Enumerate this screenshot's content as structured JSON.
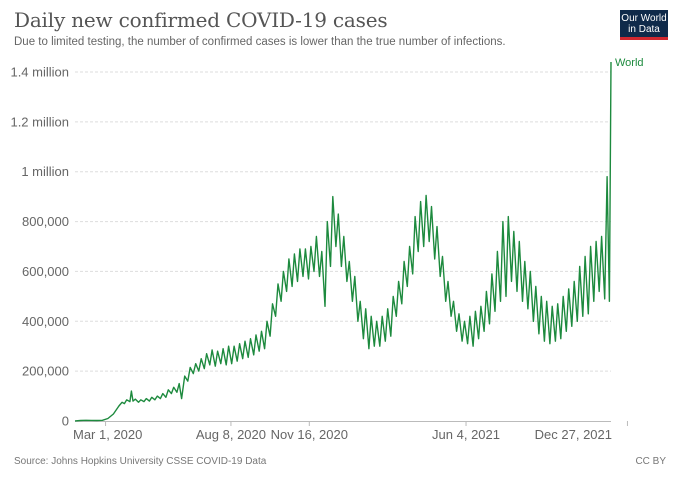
{
  "header": {
    "title": "Daily new confirmed COVID-19 cases",
    "subtitle": "Due to limited testing, the number of confirmed cases is lower than the true number of infections.",
    "logo_line1": "Our World",
    "logo_line2": "in Data"
  },
  "footer": {
    "source": "Source: Johns Hopkins University CSSE COVID-19 Data",
    "license": "CC BY"
  },
  "colors": {
    "line": "#1d8a3e",
    "grid": "#dddddd",
    "axis": "#bbbbbb",
    "logo_bg": "#0f2a4a",
    "logo_accent": "#d1282f"
  },
  "chart_data": {
    "type": "line",
    "title": "Daily new confirmed COVID-19 cases",
    "subtitle": "Due to limited testing, the number of confirmed cases is lower than the true number of infections.",
    "xlabel": "",
    "ylabel": "",
    "x_start": "2020-01-22",
    "x_end": "2022-01-04",
    "ylim": [
      0,
      1400000
    ],
    "yticks": [
      {
        "value": 0,
        "label": "0"
      },
      {
        "value": 200000,
        "label": "200,000"
      },
      {
        "value": 400000,
        "label": "400,000"
      },
      {
        "value": 600000,
        "label": "600,000"
      },
      {
        "value": 800000,
        "label": "800,000"
      },
      {
        "value": 1000000,
        "label": "1 million"
      },
      {
        "value": 1200000,
        "label": "1.2 million"
      },
      {
        "value": 1400000,
        "label": "1.4 million"
      }
    ],
    "xticks": [
      {
        "date": "2020-03-01",
        "label": "Mar 1, 2020"
      },
      {
        "date": "2020-08-08",
        "label": "Aug 8, 2020"
      },
      {
        "date": "2020-11-16",
        "label": "Nov 16, 2020"
      },
      {
        "date": "2021-06-04",
        "label": "Jun 4, 2021"
      },
      {
        "date": "2021-12-27",
        "label": "Dec 27, 2021"
      }
    ],
    "grid": true,
    "legend": "right-end-label",
    "series": [
      {
        "name": "World",
        "note": "values sampled roughly every 3-4 days (day offset from 2020-01-22, daily cases)",
        "points": [
          [
            0,
            500
          ],
          [
            7,
            2000
          ],
          [
            14,
            3000
          ],
          [
            21,
            2500
          ],
          [
            28,
            2000
          ],
          [
            35,
            3000
          ],
          [
            42,
            10000
          ],
          [
            49,
            28000
          ],
          [
            56,
            60000
          ],
          [
            60,
            75000
          ],
          [
            63,
            70000
          ],
          [
            66,
            85000
          ],
          [
            70,
            78000
          ],
          [
            72,
            120000
          ],
          [
            74,
            80000
          ],
          [
            77,
            88000
          ],
          [
            81,
            75000
          ],
          [
            84,
            85000
          ],
          [
            88,
            78000
          ],
          [
            91,
            90000
          ],
          [
            95,
            80000
          ],
          [
            98,
            95000
          ],
          [
            102,
            85000
          ],
          [
            105,
            100000
          ],
          [
            109,
            90000
          ],
          [
            112,
            110000
          ],
          [
            116,
            95000
          ],
          [
            119,
            125000
          ],
          [
            123,
            110000
          ],
          [
            126,
            135000
          ],
          [
            130,
            115000
          ],
          [
            133,
            150000
          ],
          [
            136,
            90000
          ],
          [
            140,
            180000
          ],
          [
            144,
            160000
          ],
          [
            147,
            215000
          ],
          [
            151,
            190000
          ],
          [
            154,
            230000
          ],
          [
            158,
            200000
          ],
          [
            161,
            250000
          ],
          [
            165,
            210000
          ],
          [
            168,
            270000
          ],
          [
            172,
            225000
          ],
          [
            175,
            285000
          ],
          [
            179,
            220000
          ],
          [
            182,
            280000
          ],
          [
            186,
            230000
          ],
          [
            189,
            290000
          ],
          [
            193,
            225000
          ],
          [
            196,
            300000
          ],
          [
            200,
            230000
          ],
          [
            203,
            300000
          ],
          [
            207,
            240000
          ],
          [
            210,
            310000
          ],
          [
            214,
            250000
          ],
          [
            217,
            320000
          ],
          [
            221,
            255000
          ],
          [
            224,
            330000
          ],
          [
            228,
            265000
          ],
          [
            231,
            345000
          ],
          [
            235,
            280000
          ],
          [
            238,
            360000
          ],
          [
            242,
            290000
          ],
          [
            245,
            400000
          ],
          [
            249,
            340000
          ],
          [
            252,
            470000
          ],
          [
            256,
            420000
          ],
          [
            259,
            550000
          ],
          [
            263,
            480000
          ],
          [
            266,
            600000
          ],
          [
            270,
            520000
          ],
          [
            273,
            650000
          ],
          [
            277,
            540000
          ],
          [
            280,
            670000
          ],
          [
            284,
            560000
          ],
          [
            287,
            690000
          ],
          [
            291,
            580000
          ],
          [
            294,
            690000
          ],
          [
            298,
            570000
          ],
          [
            301,
            700000
          ],
          [
            305,
            600000
          ],
          [
            308,
            740000
          ],
          [
            312,
            580000
          ],
          [
            315,
            680000
          ],
          [
            319,
            460000
          ],
          [
            322,
            800000
          ],
          [
            326,
            620000
          ],
          [
            329,
            900000
          ],
          [
            333,
            700000
          ],
          [
            336,
            830000
          ],
          [
            340,
            620000
          ],
          [
            343,
            740000
          ],
          [
            347,
            560000
          ],
          [
            350,
            640000
          ],
          [
            354,
            480000
          ],
          [
            357,
            580000
          ],
          [
            361,
            400000
          ],
          [
            364,
            480000
          ],
          [
            368,
            330000
          ],
          [
            371,
            450000
          ],
          [
            375,
            290000
          ],
          [
            378,
            420000
          ],
          [
            382,
            300000
          ],
          [
            385,
            400000
          ],
          [
            389,
            300000
          ],
          [
            392,
            420000
          ],
          [
            396,
            320000
          ],
          [
            399,
            450000
          ],
          [
            403,
            340000
          ],
          [
            406,
            500000
          ],
          [
            410,
            420000
          ],
          [
            413,
            560000
          ],
          [
            417,
            470000
          ],
          [
            420,
            640000
          ],
          [
            424,
            540000
          ],
          [
            427,
            700000
          ],
          [
            431,
            590000
          ],
          [
            434,
            820000
          ],
          [
            438,
            680000
          ],
          [
            441,
            880000
          ],
          [
            445,
            700000
          ],
          [
            448,
            905000
          ],
          [
            452,
            720000
          ],
          [
            455,
            860000
          ],
          [
            459,
            650000
          ],
          [
            462,
            780000
          ],
          [
            466,
            580000
          ],
          [
            469,
            660000
          ],
          [
            473,
            480000
          ],
          [
            476,
            560000
          ],
          [
            480,
            420000
          ],
          [
            483,
            480000
          ],
          [
            487,
            360000
          ],
          [
            490,
            430000
          ],
          [
            494,
            320000
          ],
          [
            497,
            400000
          ],
          [
            501,
            310000
          ],
          [
            504,
            420000
          ],
          [
            508,
            300000
          ],
          [
            511,
            440000
          ],
          [
            515,
            330000
          ],
          [
            518,
            460000
          ],
          [
            522,
            360000
          ],
          [
            525,
            520000
          ],
          [
            529,
            390000
          ],
          [
            532,
            590000
          ],
          [
            536,
            440000
          ],
          [
            539,
            680000
          ],
          [
            543,
            480000
          ],
          [
            546,
            800000
          ],
          [
            550,
            500000
          ],
          [
            553,
            820000
          ],
          [
            557,
            560000
          ],
          [
            560,
            760000
          ],
          [
            564,
            520000
          ],
          [
            567,
            720000
          ],
          [
            571,
            480000
          ],
          [
            574,
            640000
          ],
          [
            578,
            450000
          ],
          [
            581,
            600000
          ],
          [
            585,
            400000
          ],
          [
            588,
            540000
          ],
          [
            592,
            350000
          ],
          [
            595,
            500000
          ],
          [
            599,
            320000
          ],
          [
            602,
            480000
          ],
          [
            606,
            310000
          ],
          [
            609,
            460000
          ],
          [
            613,
            320000
          ],
          [
            616,
            470000
          ],
          [
            620,
            330000
          ],
          [
            623,
            500000
          ],
          [
            627,
            360000
          ],
          [
            630,
            530000
          ],
          [
            634,
            380000
          ],
          [
            637,
            560000
          ],
          [
            641,
            400000
          ],
          [
            644,
            620000
          ],
          [
            648,
            420000
          ],
          [
            651,
            660000
          ],
          [
            655,
            430000
          ],
          [
            658,
            700000
          ],
          [
            662,
            480000
          ],
          [
            665,
            720000
          ],
          [
            669,
            520000
          ],
          [
            672,
            740000
          ],
          [
            676,
            490000
          ],
          [
            679,
            980000
          ],
          [
            682,
            480000
          ],
          [
            684,
            1440000
          ]
        ]
      }
    ]
  }
}
